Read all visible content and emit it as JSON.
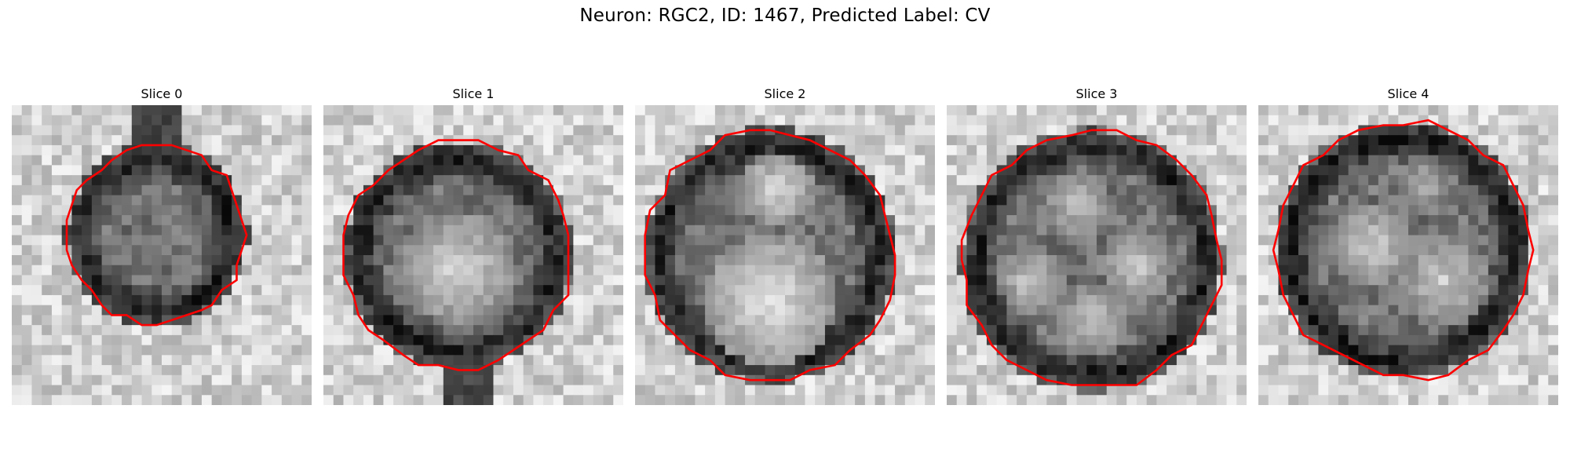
{
  "figure": {
    "suptitle": "Neuron: RGC2, ID: 1467, Predicted Label: CV"
  },
  "panels": [
    {
      "title": "Slice 0"
    },
    {
      "title": "Slice 1"
    },
    {
      "title": "Slice 2"
    },
    {
      "title": "Slice 3"
    },
    {
      "title": "Slice 4"
    }
  ],
  "style": {
    "contour_color": "#ff0000",
    "colormap": "grayscale"
  }
}
